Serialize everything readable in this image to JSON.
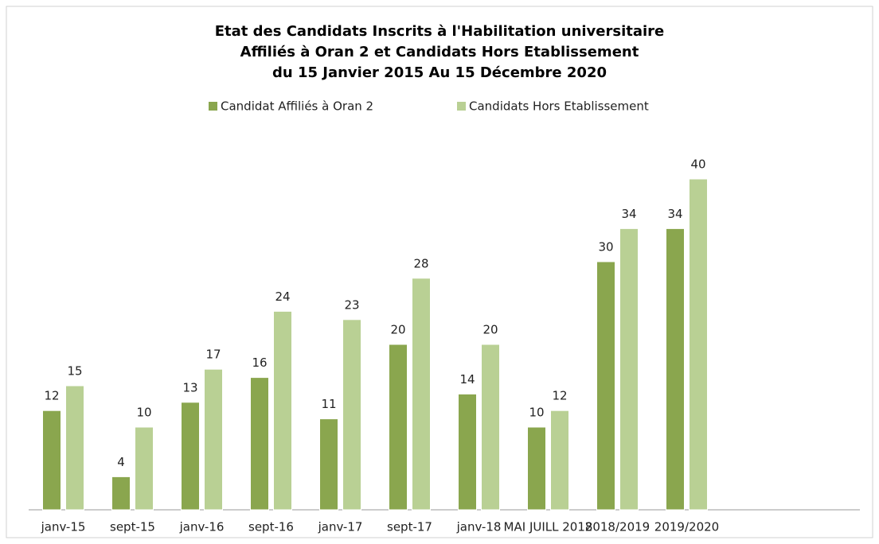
{
  "chart_data": {
    "type": "bar",
    "title": [
      "Etat des Candidats  Inscrits à l'Habilitation universitaire",
      "Affiliés à Oran 2 et Candidats  Hors Etablissement",
      "du 15 Janvier 2015 Au  15 Décembre 2020"
    ],
    "categories": [
      "janv-15",
      "sept-15",
      "janv-16",
      "sept-16",
      "janv-17",
      "sept-17",
      "janv-18",
      "MAI JUILL 2018",
      "2018/2019",
      "2019/2020",
      null,
      null
    ],
    "series": [
      {
        "name": "Candidat Affiliés  à Oran 2",
        "color": "#8aa64e",
        "values": [
          12,
          4,
          13,
          16,
          11,
          20,
          14,
          10,
          30,
          34,
          null,
          null
        ]
      },
      {
        "name": "Candidats Hors Etablissement",
        "color": "#b9d094",
        "values": [
          15,
          10,
          17,
          24,
          23,
          28,
          20,
          12,
          34,
          40,
          null,
          null
        ]
      }
    ],
    "ylim": [
      0,
      40
    ],
    "legend": "top"
  }
}
